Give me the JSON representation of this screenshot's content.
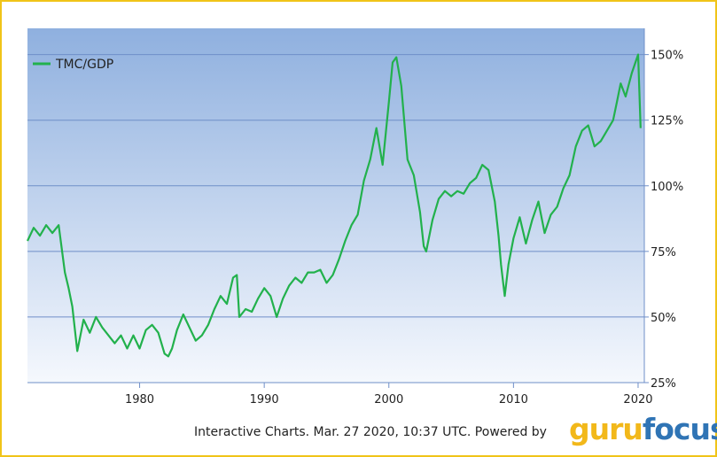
{
  "chart_data": {
    "type": "line",
    "series": [
      {
        "name": "TMC/GDP",
        "color": "#22b14c",
        "x": [
          1971.0,
          1971.5,
          1972.0,
          1972.5,
          1973.0,
          1973.5,
          1974.0,
          1974.3,
          1974.6,
          1975.0,
          1975.5,
          1976.0,
          1976.5,
          1977.0,
          1977.5,
          1978.0,
          1978.5,
          1979.0,
          1979.5,
          1980.0,
          1980.5,
          1981.0,
          1981.5,
          1982.0,
          1982.3,
          1982.6,
          1983.0,
          1983.5,
          1984.0,
          1984.5,
          1985.0,
          1985.5,
          1986.0,
          1986.5,
          1987.0,
          1987.5,
          1987.8,
          1988.0,
          1988.5,
          1989.0,
          1989.5,
          1990.0,
          1990.5,
          1991.0,
          1991.5,
          1992.0,
          1992.5,
          1993.0,
          1993.5,
          1994.0,
          1994.5,
          1995.0,
          1995.5,
          1996.0,
          1996.5,
          1997.0,
          1997.5,
          1998.0,
          1998.5,
          1999.0,
          1999.5,
          2000.0,
          2000.3,
          2000.6,
          2001.0,
          2001.5,
          2002.0,
          2002.5,
          2002.8,
          2003.0,
          2003.5,
          2004.0,
          2004.5,
          2005.0,
          2005.5,
          2006.0,
          2006.5,
          2007.0,
          2007.5,
          2008.0,
          2008.5,
          2008.8,
          2009.0,
          2009.3,
          2009.6,
          2010.0,
          2010.5,
          2011.0,
          2011.5,
          2012.0,
          2012.5,
          2013.0,
          2013.5,
          2014.0,
          2014.5,
          2015.0,
          2015.5,
          2016.0,
          2016.5,
          2017.0,
          2017.5,
          2018.0,
          2018.3,
          2018.6,
          2019.0,
          2019.5,
          2020.0,
          2020.2
        ],
        "values": [
          79,
          84,
          81,
          85,
          82,
          85,
          67,
          61,
          54,
          37,
          49,
          44,
          50,
          46,
          43,
          40,
          43,
          38,
          43,
          38,
          45,
          47,
          44,
          36,
          35,
          38,
          45,
          51,
          46,
          41,
          43,
          47,
          53,
          58,
          55,
          65,
          66,
          50,
          53,
          52,
          57,
          61,
          58,
          50,
          57,
          62,
          65,
          63,
          67,
          67,
          68,
          63,
          66,
          72,
          79,
          85,
          89,
          102,
          110,
          122,
          108,
          132,
          147,
          149,
          138,
          110,
          104,
          90,
          77,
          75,
          87,
          95,
          98,
          96,
          98,
          97,
          101,
          103,
          108,
          106,
          94,
          81,
          70,
          58,
          70,
          80,
          88,
          78,
          87,
          94,
          82,
          89,
          92,
          99,
          104,
          115,
          121,
          123,
          115,
          117,
          121,
          125,
          132,
          139,
          134,
          143,
          150,
          122
        ]
      }
    ],
    "xlim": [
      1971,
      2020.5
    ],
    "ylim": [
      25,
      160
    ],
    "xticks": [
      "1980",
      "1990",
      "2000",
      "2010",
      "2020"
    ],
    "xtick_values": [
      1980,
      1990,
      2000,
      2010,
      2020
    ],
    "yticks": [
      "25%",
      "50%",
      "75%",
      "100%",
      "125%",
      "150%"
    ],
    "ytick_values": [
      25,
      50,
      75,
      100,
      125,
      150
    ],
    "legend_position": "top-left",
    "grid": true,
    "background_gradient": [
      "#8fb0df",
      "#f5f8fd"
    ],
    "gridline_color": "#6f8fc8"
  },
  "footer": {
    "text": "Interactive Charts. Mar. 27 2020, 10:37 UTC. Powered by"
  },
  "logo": {
    "part1": "guru",
    "part2": "focus"
  }
}
